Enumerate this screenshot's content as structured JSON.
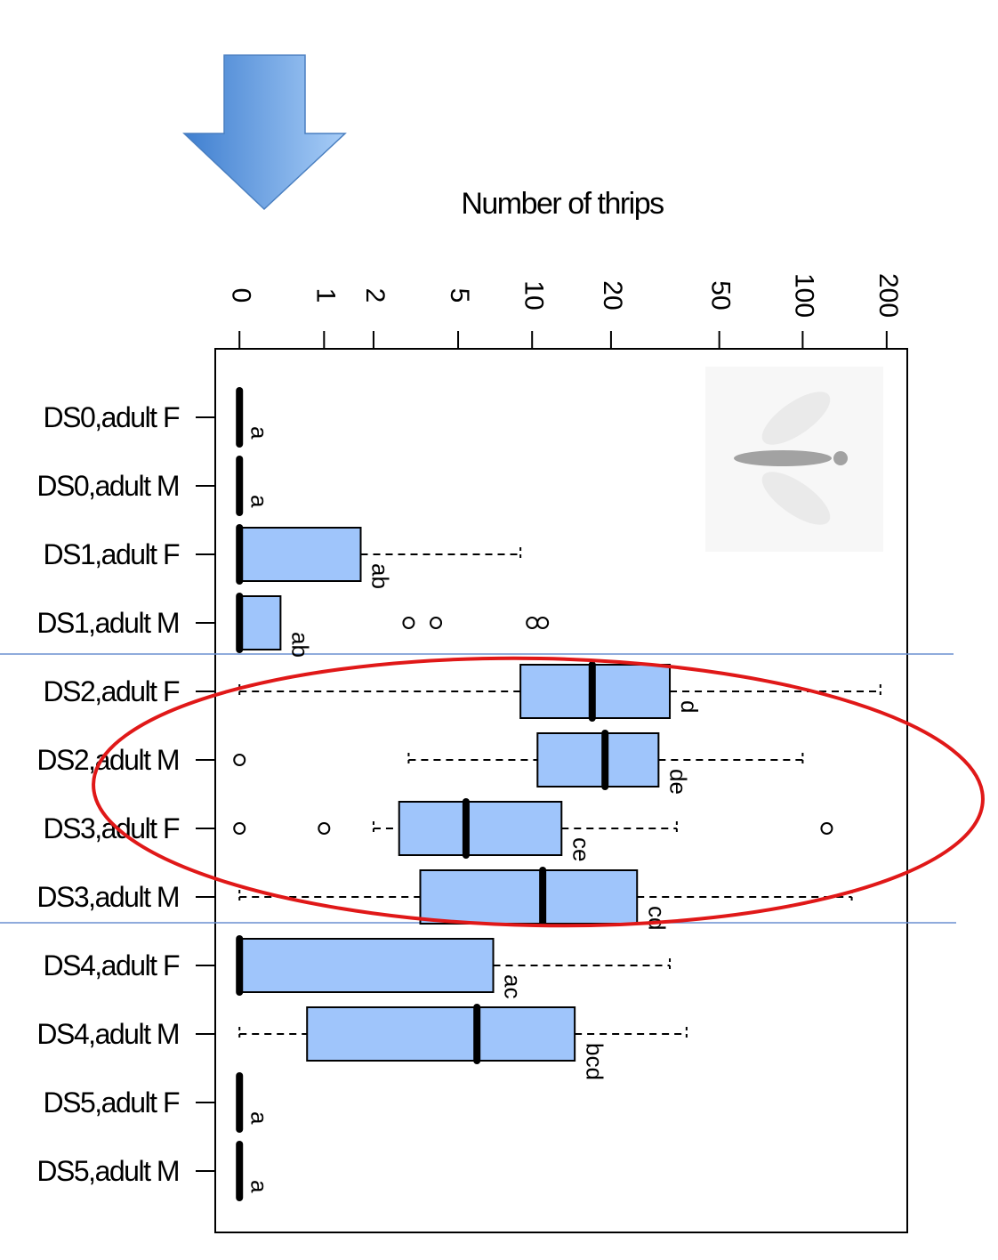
{
  "chart_data": {
    "type": "boxplot",
    "orientation": "horizontal",
    "title": "Number of thrips",
    "x_scale": "log1p",
    "xlim": [
      -0.18,
      237
    ],
    "xticks": [
      0,
      1,
      2,
      5,
      10,
      20,
      50,
      100,
      200
    ],
    "categories": [
      "DS0,adult F",
      "DS0,adult M",
      "DS1,adult F",
      "DS1,adult M",
      "DS2,adult F",
      "DS2,adult M",
      "DS3,adult F",
      "DS3,adult M",
      "DS4,adult F",
      "DS4,adult M",
      "DS5,adult F",
      "DS5,adult M"
    ],
    "color": "#9fc5fb",
    "boxes": [
      {
        "whislo": 0,
        "q1": 0,
        "med": 0,
        "q3": 0,
        "whishi": 0,
        "fliers": []
      },
      {
        "whislo": 0,
        "q1": 0,
        "med": 0,
        "q3": 0,
        "whishi": 0,
        "fliers": []
      },
      {
        "whislo": 0,
        "q1": 0,
        "med": 0,
        "q3": 1.7,
        "whishi": 9,
        "fliers": []
      },
      {
        "whislo": 0,
        "q1": 0,
        "med": 0,
        "q3": 0.4,
        "whishi": 0.4,
        "fliers": [
          3,
          4,
          10,
          11
        ]
      },
      {
        "whislo": 0,
        "q1": 9,
        "med": 17,
        "q3": 33,
        "whishi": 190,
        "fliers": []
      },
      {
        "whislo": 3,
        "q1": 10.5,
        "med": 19,
        "q3": 30,
        "whishi": 100,
        "fliers": [
          0
        ]
      },
      {
        "whislo": 2,
        "q1": 2.7,
        "med": 5.4,
        "q3": 13,
        "whishi": 35,
        "fliers": [
          0,
          1,
          122
        ]
      },
      {
        "whislo": 0,
        "q1": 3.4,
        "med": 11,
        "q3": 25,
        "whishi": 150,
        "fliers": []
      },
      {
        "whislo": 0,
        "q1": 0,
        "med": 0,
        "q3": 7,
        "whishi": 33,
        "fliers": []
      },
      {
        "whislo": 0,
        "q1": 0.74,
        "med": 6,
        "q3": 14.6,
        "whishi": 38,
        "fliers": []
      },
      {
        "whislo": 0,
        "q1": 0,
        "med": 0,
        "q3": 0,
        "whishi": 0,
        "fliers": []
      },
      {
        "whislo": 0,
        "q1": 0,
        "med": 0,
        "q3": 0,
        "whishi": 0,
        "fliers": []
      }
    ],
    "letters": [
      "a",
      "a",
      "ab",
      "ab",
      "d",
      "de",
      "ce",
      "cd",
      "ac",
      "bcd",
      "a",
      "a"
    ]
  }
}
